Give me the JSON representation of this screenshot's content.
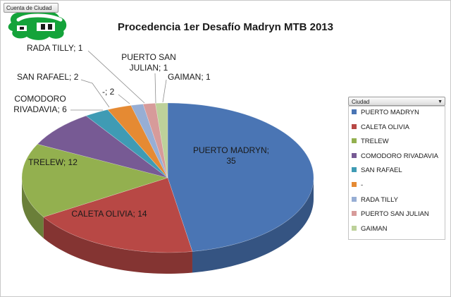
{
  "field_button": {
    "label": "Cuenta de Ciudad"
  },
  "legend_filter": {
    "label": "Ciudad"
  },
  "chart_data": {
    "type": "pie",
    "title": "Procedencia 1er Desafío Madryn MTB 2013",
    "legend_position": "right",
    "series": [
      {
        "name": "PUERTO MADRYN",
        "label": "PUERTO MADRYN;\n35",
        "value": 35,
        "color": "#4a75b4"
      },
      {
        "name": "CALETA OLIVIA",
        "label": "CALETA OLIVIA; 14",
        "value": 14,
        "color": "#b84845"
      },
      {
        "name": "TRELEW",
        "label": "TRELEW; 12",
        "value": 12,
        "color": "#93b04f"
      },
      {
        "name": "COMODORO RIVADAVIA",
        "label": "COMODORO\nRIVADAVIA; 6",
        "value": 6,
        "color": "#775a94"
      },
      {
        "name": "SAN RAFAEL",
        "label": "SAN RAFAEL; 2",
        "value": 2,
        "color": "#3f9bb4"
      },
      {
        "name": "-",
        "label": "-; 2",
        "value": 2,
        "color": "#e58a33"
      },
      {
        "name": "RADA TILLY",
        "label": "RADA TILLY; 1",
        "value": 1,
        "color": "#97aed4"
      },
      {
        "name": "PUERTO SAN JULIAN",
        "label": "PUERTO SAN\nJULIAN; 1",
        "value": 1,
        "color": "#d79b9a"
      },
      {
        "name": "GAIMAN",
        "label": "GAIMAN; 1",
        "value": 1,
        "color": "#bdd19a"
      }
    ]
  }
}
